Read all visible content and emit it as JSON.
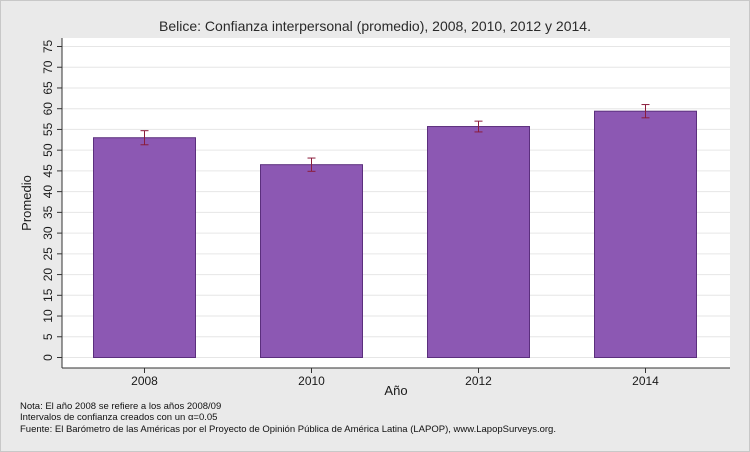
{
  "chart_data": {
    "type": "bar",
    "title": "Belice: Confianza interpersonal (promedio), 2008, 2010, 2012 y 2014.",
    "xlabel": "Año",
    "ylabel": "Promedio",
    "categories": [
      "2008",
      "2010",
      "2012",
      "2014"
    ],
    "values": [
      53.0,
      46.5,
      55.7,
      59.4
    ],
    "ci_low": [
      51.3,
      44.9,
      54.4,
      57.8
    ],
    "ci_high": [
      54.7,
      48.1,
      57.0,
      61.0
    ],
    "yticks": [
      0,
      5,
      10,
      15,
      20,
      25,
      30,
      35,
      40,
      45,
      50,
      55,
      60,
      65,
      70,
      75
    ],
    "ylim": [
      0,
      75
    ],
    "grid": true,
    "bar_color": "#8c58b3",
    "bar_edge_color": "#5b2f7d",
    "error_bar_color": "#8b1c3c",
    "plot_background": "#ffffff",
    "page_background": "#eaeaea"
  },
  "notes": [
    "Nota: El año 2008 se refiere a los años 2008/09",
    "Intervalos de confianza creados con un α=0.05",
    "Fuente: El Barómetro de las Américas por el Proyecto de Opinión Pública de América Latina (LAPOP), www.LapopSurveys.org."
  ]
}
